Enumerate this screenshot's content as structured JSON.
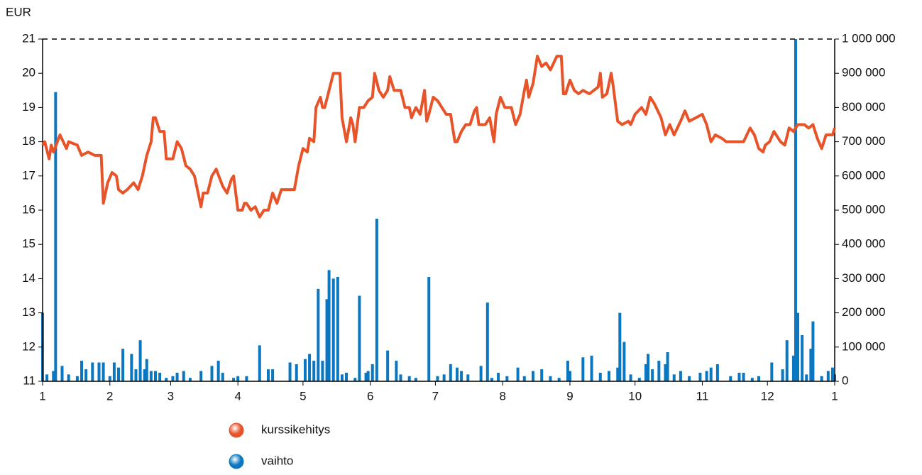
{
  "chart_data": {
    "type": "combo",
    "ylabel": "EUR",
    "legend": "bottom",
    "xlim": [
      0,
      365
    ],
    "xticks": [
      {
        "value": 0,
        "label": "1"
      },
      {
        "value": 31,
        "label": "2"
      },
      {
        "value": 59,
        "label": "3"
      },
      {
        "value": 90,
        "label": "4"
      },
      {
        "value": 120,
        "label": "5"
      },
      {
        "value": 151,
        "label": "6"
      },
      {
        "value": 181,
        "label": "7"
      },
      {
        "value": 212,
        "label": "8"
      },
      {
        "value": 243,
        "label": "9"
      },
      {
        "value": 273,
        "label": "10"
      },
      {
        "value": 304,
        "label": "11"
      },
      {
        "value": 334,
        "label": "12"
      },
      {
        "value": 365,
        "label": "1"
      }
    ],
    "ylim": [
      11,
      21
    ],
    "yticks": [
      11,
      12,
      13,
      14,
      15,
      16,
      17,
      18,
      19,
      20,
      21
    ],
    "y2lim": [
      0,
      1000000
    ],
    "y2ticks": [
      0,
      {
        "value": 100000,
        "label": "100 000"
      },
      {
        "value": 200000,
        "label": "200 000"
      },
      {
        "value": 300000,
        "label": "300 000"
      },
      {
        "value": 400000,
        "label": "400 000"
      },
      {
        "value": 500000,
        "label": "500 000"
      },
      {
        "value": 600000,
        "label": "600 000"
      },
      {
        "value": 700000,
        "label": "700 000"
      },
      {
        "value": 800000,
        "label": "800 000"
      },
      {
        "value": 900000,
        "label": "900 000"
      },
      {
        "value": 1000000,
        "label": "1 000 000"
      }
    ],
    "series": [
      {
        "name": "kurssikehitys",
        "type": "line",
        "color": "#e8542a",
        "x": [
          0,
          1,
          3,
          4,
          5,
          8,
          11,
          12,
          16,
          18,
          21,
          24,
          27,
          28,
          30,
          32,
          34,
          35,
          37,
          39,
          42,
          44,
          46,
          48,
          50,
          51,
          52,
          54,
          56,
          57,
          60,
          62,
          64,
          66,
          68,
          70,
          73,
          74,
          76,
          78,
          80,
          83,
          85,
          87,
          88,
          90,
          92,
          93,
          94,
          96,
          98,
          100,
          102,
          104,
          106,
          108,
          110,
          112,
          116,
          118,
          120,
          122,
          123,
          125,
          126,
          128,
          129,
          130,
          132,
          134,
          137,
          138,
          140,
          142,
          143,
          144,
          146,
          148,
          150,
          152,
          153,
          155,
          157,
          159,
          160,
          162,
          165,
          167,
          169,
          170,
          172,
          174,
          176,
          177,
          178,
          180,
          182,
          184,
          186,
          188,
          190,
          191,
          193,
          195,
          197,
          199,
          200,
          201,
          204,
          206,
          208,
          209,
          211,
          213,
          216,
          218,
          220,
          222,
          223,
          224,
          226,
          228,
          230,
          232,
          234,
          237,
          239,
          240,
          241,
          243,
          245,
          247,
          249,
          252,
          254,
          256,
          257,
          258,
          260,
          262,
          263,
          265,
          267,
          270,
          271,
          273,
          276,
          278,
          280,
          282,
          285,
          287,
          289,
          291,
          294,
          296,
          298,
          301,
          304,
          306,
          308,
          310,
          313,
          315,
          321,
          323,
          326,
          328,
          330,
          332,
          333,
          335,
          337,
          340,
          342,
          344,
          346,
          348,
          351,
          353,
          355,
          357,
          359,
          361,
          364,
          365
        ],
        "values": [
          17.9,
          18.0,
          17.5,
          17.9,
          17.7,
          18.2,
          17.8,
          18.0,
          17.9,
          17.6,
          17.7,
          17.6,
          17.6,
          16.2,
          16.8,
          17.1,
          17.0,
          16.6,
          16.5,
          16.6,
          16.8,
          16.6,
          17.0,
          17.6,
          18.0,
          18.7,
          18.7,
          18.3,
          18.3,
          17.5,
          17.5,
          18.0,
          17.8,
          17.3,
          17.2,
          17.0,
          16.1,
          16.5,
          16.5,
          17.0,
          17.2,
          16.7,
          16.5,
          16.9,
          17.0,
          16.0,
          16.0,
          16.2,
          16.2,
          16.0,
          16.1,
          15.8,
          16.0,
          16.0,
          16.5,
          16.2,
          16.6,
          16.6,
          16.6,
          17.3,
          17.8,
          17.7,
          18.1,
          18.0,
          19.0,
          19.3,
          19.0,
          19.0,
          19.5,
          20.0,
          20.0,
          18.7,
          18.0,
          18.7,
          18.5,
          18.0,
          19.0,
          19.0,
          19.2,
          19.3,
          20.0,
          19.5,
          19.3,
          19.5,
          19.9,
          19.5,
          19.5,
          19.0,
          19.0,
          18.7,
          19.0,
          18.8,
          19.5,
          18.6,
          18.8,
          19.3,
          19.2,
          19.0,
          18.8,
          18.8,
          18.0,
          18.0,
          18.3,
          18.5,
          18.5,
          18.9,
          19.0,
          18.5,
          18.5,
          18.7,
          18.0,
          18.8,
          19.3,
          19.0,
          19.0,
          18.5,
          18.8,
          19.5,
          19.8,
          19.3,
          19.7,
          20.5,
          20.2,
          20.3,
          20.1,
          20.5,
          20.5,
          19.4,
          19.4,
          19.8,
          19.5,
          19.4,
          19.5,
          19.4,
          19.5,
          19.6,
          20.0,
          19.3,
          19.4,
          20.0,
          19.6,
          18.6,
          18.5,
          18.6,
          18.5,
          18.8,
          19.0,
          18.8,
          19.3,
          19.1,
          18.7,
          18.2,
          18.5,
          18.2,
          18.6,
          18.9,
          18.6,
          18.7,
          18.8,
          18.5,
          18.0,
          18.2,
          18.1,
          18.0,
          18.0,
          18.0,
          18.4,
          18.2,
          17.8,
          17.7,
          17.9,
          18.0,
          18.3,
          18.0,
          17.9,
          18.4,
          18.3,
          18.5,
          18.5,
          18.4,
          18.5,
          18.1,
          17.8,
          18.2,
          18.2,
          18.4
        ]
      },
      {
        "name": "vaihto",
        "type": "bar",
        "axis": "y2",
        "color": "#0a77c0",
        "x": [
          0,
          2,
          5,
          6,
          9,
          12,
          16,
          18,
          20,
          23,
          26,
          28,
          31,
          33,
          35,
          37,
          41,
          43,
          45,
          47,
          48,
          50,
          52,
          54,
          57,
          60,
          62,
          65,
          68,
          73,
          78,
          81,
          83,
          88,
          90,
          94,
          100,
          104,
          106,
          114,
          117,
          121,
          123,
          125,
          127,
          129,
          131,
          132,
          134,
          136,
          138,
          140,
          144,
          146,
          149,
          150,
          152,
          154,
          159,
          163,
          165,
          169,
          172,
          178,
          182,
          185,
          188,
          191,
          193,
          196,
          202,
          205,
          207,
          210,
          214,
          219,
          222,
          226,
          230,
          234,
          238,
          242,
          243,
          249,
          253,
          257,
          261,
          265,
          266,
          268,
          271,
          275,
          278,
          279,
          281,
          284,
          287,
          288,
          291,
          294,
          298,
          303,
          306,
          308,
          311,
          317,
          321,
          323,
          327,
          330,
          336,
          341,
          343,
          346,
          347,
          348,
          350,
          352,
          354,
          355,
          359,
          362,
          364,
          365
        ],
        "values": [
          200000,
          20000,
          30000,
          845000,
          45000,
          20000,
          15000,
          60000,
          35000,
          55000,
          55000,
          55000,
          15000,
          55000,
          40000,
          95000,
          80000,
          35000,
          120000,
          35000,
          65000,
          30000,
          30000,
          25000,
          10000,
          15000,
          25000,
          30000,
          10000,
          30000,
          45000,
          60000,
          25000,
          10000,
          15000,
          15000,
          105000,
          35000,
          35000,
          55000,
          50000,
          65000,
          80000,
          60000,
          270000,
          60000,
          240000,
          325000,
          300000,
          305000,
          20000,
          25000,
          10000,
          250000,
          25000,
          30000,
          50000,
          475000,
          90000,
          60000,
          20000,
          15000,
          10000,
          305000,
          15000,
          20000,
          50000,
          40000,
          30000,
          20000,
          45000,
          230000,
          10000,
          25000,
          15000,
          40000,
          15000,
          30000,
          35000,
          15000,
          10000,
          60000,
          30000,
          70000,
          75000,
          25000,
          30000,
          40000,
          200000,
          115000,
          20000,
          10000,
          50000,
          80000,
          35000,
          60000,
          50000,
          85000,
          20000,
          30000,
          15000,
          25000,
          30000,
          40000,
          50000,
          15000,
          25000,
          25000,
          10000,
          15000,
          55000,
          35000,
          120000,
          75000,
          1000000,
          200000,
          135000,
          20000,
          95000,
          175000,
          15000,
          30000,
          40000,
          20000
        ]
      }
    ]
  }
}
